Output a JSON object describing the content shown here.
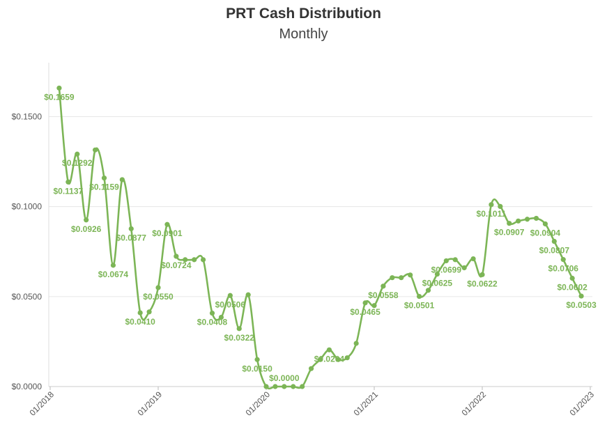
{
  "chart_data": {
    "type": "line",
    "title": "PRT Cash Distribution",
    "subtitle": "Monthly",
    "xlabel": "",
    "ylabel": "",
    "ylim": [
      0,
      0.18
    ],
    "y_ticks": [
      "$0.0000",
      "$0.0500",
      "$0.1000",
      "$0.1500"
    ],
    "y_tick_values": [
      0,
      0.05,
      0.1,
      0.15
    ],
    "x_tick_labels": [
      "01/2018",
      "01/2019",
      "01/2020",
      "01/2021",
      "01/2022",
      "01/2023"
    ],
    "x_tick_values": [
      "2018-01",
      "2019-01",
      "2020-01",
      "2021-01",
      "2022-01",
      "2023-01"
    ],
    "grid": true,
    "color": "#7cb556",
    "series": [
      {
        "points": [
          {
            "x": "2018-02",
            "y": 0.1659,
            "label": "$0.1659"
          },
          {
            "x": "2018-03",
            "y": 0.1137,
            "label": "$0.1137"
          },
          {
            "x": "2018-04",
            "y": 0.1292,
            "label": "$0.1292"
          },
          {
            "x": "2018-05",
            "y": 0.0926,
            "label": "$0.0926"
          },
          {
            "x": "2018-06",
            "y": 0.1315
          },
          {
            "x": "2018-07",
            "y": 0.1159,
            "label": "$0.1159"
          },
          {
            "x": "2018-08",
            "y": 0.0674,
            "label": "$0.0674"
          },
          {
            "x": "2018-09",
            "y": 0.115
          },
          {
            "x": "2018-10",
            "y": 0.0877,
            "label": "$0.0877"
          },
          {
            "x": "2018-11",
            "y": 0.041,
            "label": "$0.0410"
          },
          {
            "x": "2018-12",
            "y": 0.0415
          },
          {
            "x": "2019-01",
            "y": 0.055,
            "label": "$0.0550"
          },
          {
            "x": "2019-02",
            "y": 0.0901,
            "label": "$0.0901"
          },
          {
            "x": "2019-03",
            "y": 0.0724,
            "label": "$0.0724"
          },
          {
            "x": "2019-04",
            "y": 0.0705
          },
          {
            "x": "2019-05",
            "y": 0.0705
          },
          {
            "x": "2019-06",
            "y": 0.0705
          },
          {
            "x": "2019-07",
            "y": 0.0408,
            "label": "$0.0408"
          },
          {
            "x": "2019-08",
            "y": 0.0385
          },
          {
            "x": "2019-09",
            "y": 0.0506,
            "label": "$0.0506"
          },
          {
            "x": "2019-10",
            "y": 0.0322,
            "label": "$0.0322"
          },
          {
            "x": "2019-11",
            "y": 0.051
          },
          {
            "x": "2019-12",
            "y": 0.015,
            "label": "$0.0150"
          },
          {
            "x": "2020-01",
            "y": 0.0
          },
          {
            "x": "2020-02",
            "y": 0.0
          },
          {
            "x": "2020-03",
            "y": 0.0,
            "label": "$0.0000"
          },
          {
            "x": "2020-04",
            "y": 0.0
          },
          {
            "x": "2020-05",
            "y": 0.0
          },
          {
            "x": "2020-06",
            "y": 0.01
          },
          {
            "x": "2020-07",
            "y": 0.015
          },
          {
            "x": "2020-08",
            "y": 0.0204,
            "label": "$0.0204"
          },
          {
            "x": "2020-09",
            "y": 0.015
          },
          {
            "x": "2020-10",
            "y": 0.016
          },
          {
            "x": "2020-11",
            "y": 0.024
          },
          {
            "x": "2020-12",
            "y": 0.0465,
            "label": "$0.0465"
          },
          {
            "x": "2021-01",
            "y": 0.045
          },
          {
            "x": "2021-02",
            "y": 0.0558,
            "label": "$0.0558"
          },
          {
            "x": "2021-03",
            "y": 0.0605
          },
          {
            "x": "2021-04",
            "y": 0.0605
          },
          {
            "x": "2021-05",
            "y": 0.062
          },
          {
            "x": "2021-06",
            "y": 0.0501,
            "label": "$0.0501"
          },
          {
            "x": "2021-07",
            "y": 0.0535
          },
          {
            "x": "2021-08",
            "y": 0.0625,
            "label": "$0.0625"
          },
          {
            "x": "2021-09",
            "y": 0.0699,
            "label": "$0.0699"
          },
          {
            "x": "2021-10",
            "y": 0.0705
          },
          {
            "x": "2021-11",
            "y": 0.066
          },
          {
            "x": "2021-12",
            "y": 0.071
          },
          {
            "x": "2022-01",
            "y": 0.0622,
            "label": "$0.0622"
          },
          {
            "x": "2022-02",
            "y": 0.1011,
            "label": "$0.1011"
          },
          {
            "x": "2022-03",
            "y": 0.1001
          },
          {
            "x": "2022-04",
            "y": 0.0907,
            "label": "$0.0907"
          },
          {
            "x": "2022-05",
            "y": 0.092
          },
          {
            "x": "2022-06",
            "y": 0.093
          },
          {
            "x": "2022-07",
            "y": 0.0935
          },
          {
            "x": "2022-08",
            "y": 0.0904,
            "label": "$0.0904"
          },
          {
            "x": "2022-09",
            "y": 0.0807,
            "label": "$0.0807"
          },
          {
            "x": "2022-10",
            "y": 0.0706,
            "label": "$0.0706"
          },
          {
            "x": "2022-11",
            "y": 0.0602,
            "label": "$0.0602"
          },
          {
            "x": "2022-12",
            "y": 0.0503,
            "label": "$0.0503"
          }
        ]
      }
    ]
  }
}
